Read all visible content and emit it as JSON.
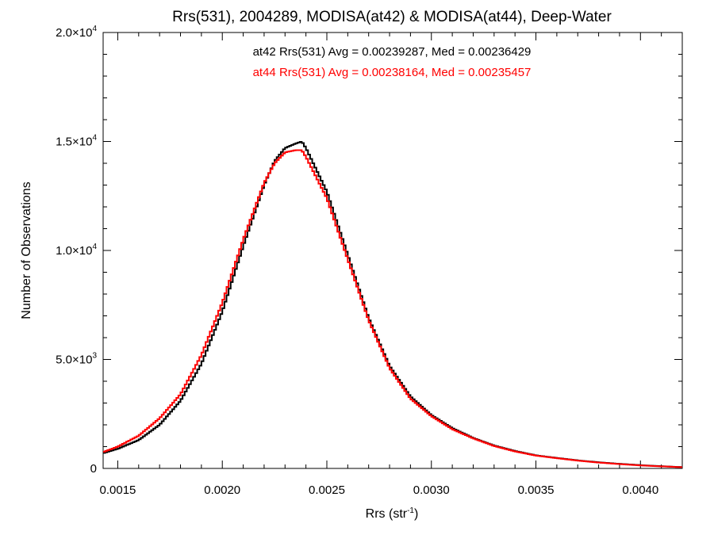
{
  "chart_data": {
    "type": "line",
    "title": "Rrs(531), 2004289, MODISA(at42) & MODISA(at44), Deep-Water",
    "xlabel": {
      "base": "Rrs (str",
      "sup": "-1",
      "end": ")"
    },
    "ylabel": "Number of Observations",
    "xlim": [
      0.00143,
      0.0042
    ],
    "ylim": [
      0,
      20000
    ],
    "grid": false,
    "x_ticks": [
      {
        "value": 0.0015,
        "label": "0.0015"
      },
      {
        "value": 0.002,
        "label": "0.0020"
      },
      {
        "value": 0.0025,
        "label": "0.0025"
      },
      {
        "value": 0.003,
        "label": "0.0030"
      },
      {
        "value": 0.0035,
        "label": "0.0035"
      },
      {
        "value": 0.004,
        "label": "0.0040"
      }
    ],
    "y_ticks": [
      {
        "value": 0,
        "mant": "0",
        "exp": ""
      },
      {
        "value": 5000,
        "mant": "5.0×10",
        "exp": "3"
      },
      {
        "value": 10000,
        "mant": "1.0×10",
        "exp": "4"
      },
      {
        "value": 15000,
        "mant": "1.5×10",
        "exp": "4"
      },
      {
        "value": 20000,
        "mant": "2.0×10",
        "exp": "4"
      }
    ],
    "annotations": [
      {
        "text": "at42 Rrs(531) Avg = 0.00239287, Med = 0.00236429",
        "color": "#000000"
      },
      {
        "text": "at44 Rrs(531) Avg = 0.00238164, Med = 0.00235457",
        "color": "#ff0000"
      }
    ],
    "series": [
      {
        "color": "#000000",
        "x": [
          0.00143,
          0.0015,
          0.0016,
          0.0017,
          0.0018,
          0.0019,
          0.002,
          0.0021,
          0.0022,
          0.00225,
          0.0023,
          0.00235,
          0.00238,
          0.0024,
          0.0025,
          0.0026,
          0.0027,
          0.0028,
          0.0029,
          0.003,
          0.0031,
          0.0032,
          0.0033,
          0.0034,
          0.0035,
          0.0036,
          0.0037,
          0.0038,
          0.0039,
          0.004,
          0.0041,
          0.0042
        ],
        "values": [
          700,
          900,
          1300,
          2000,
          3100,
          4800,
          7200,
          10200,
          13000,
          14100,
          14700,
          14900,
          15000,
          14700,
          12700,
          9800,
          6900,
          4700,
          3300,
          2450,
          1850,
          1400,
          1050,
          800,
          600,
          480,
          370,
          280,
          210,
          150,
          100,
          60
        ]
      },
      {
        "color": "#ff0000",
        "x": [
          0.00143,
          0.0015,
          0.0016,
          0.0017,
          0.0018,
          0.0019,
          0.002,
          0.0021,
          0.0022,
          0.00225,
          0.0023,
          0.00235,
          0.00238,
          0.0024,
          0.0025,
          0.0026,
          0.0027,
          0.0028,
          0.0029,
          0.003,
          0.0031,
          0.0032,
          0.0033,
          0.0034,
          0.0035,
          0.0036,
          0.0037,
          0.0038,
          0.0039,
          0.004,
          0.0041,
          0.0042
        ],
        "values": [
          750,
          1000,
          1500,
          2300,
          3400,
          5200,
          7600,
          10500,
          13100,
          14000,
          14500,
          14600,
          14600,
          14300,
          12400,
          9600,
          6800,
          4600,
          3200,
          2400,
          1800,
          1380,
          1030,
          780,
          590,
          470,
          360,
          270,
          200,
          140,
          95,
          55
        ]
      }
    ]
  }
}
